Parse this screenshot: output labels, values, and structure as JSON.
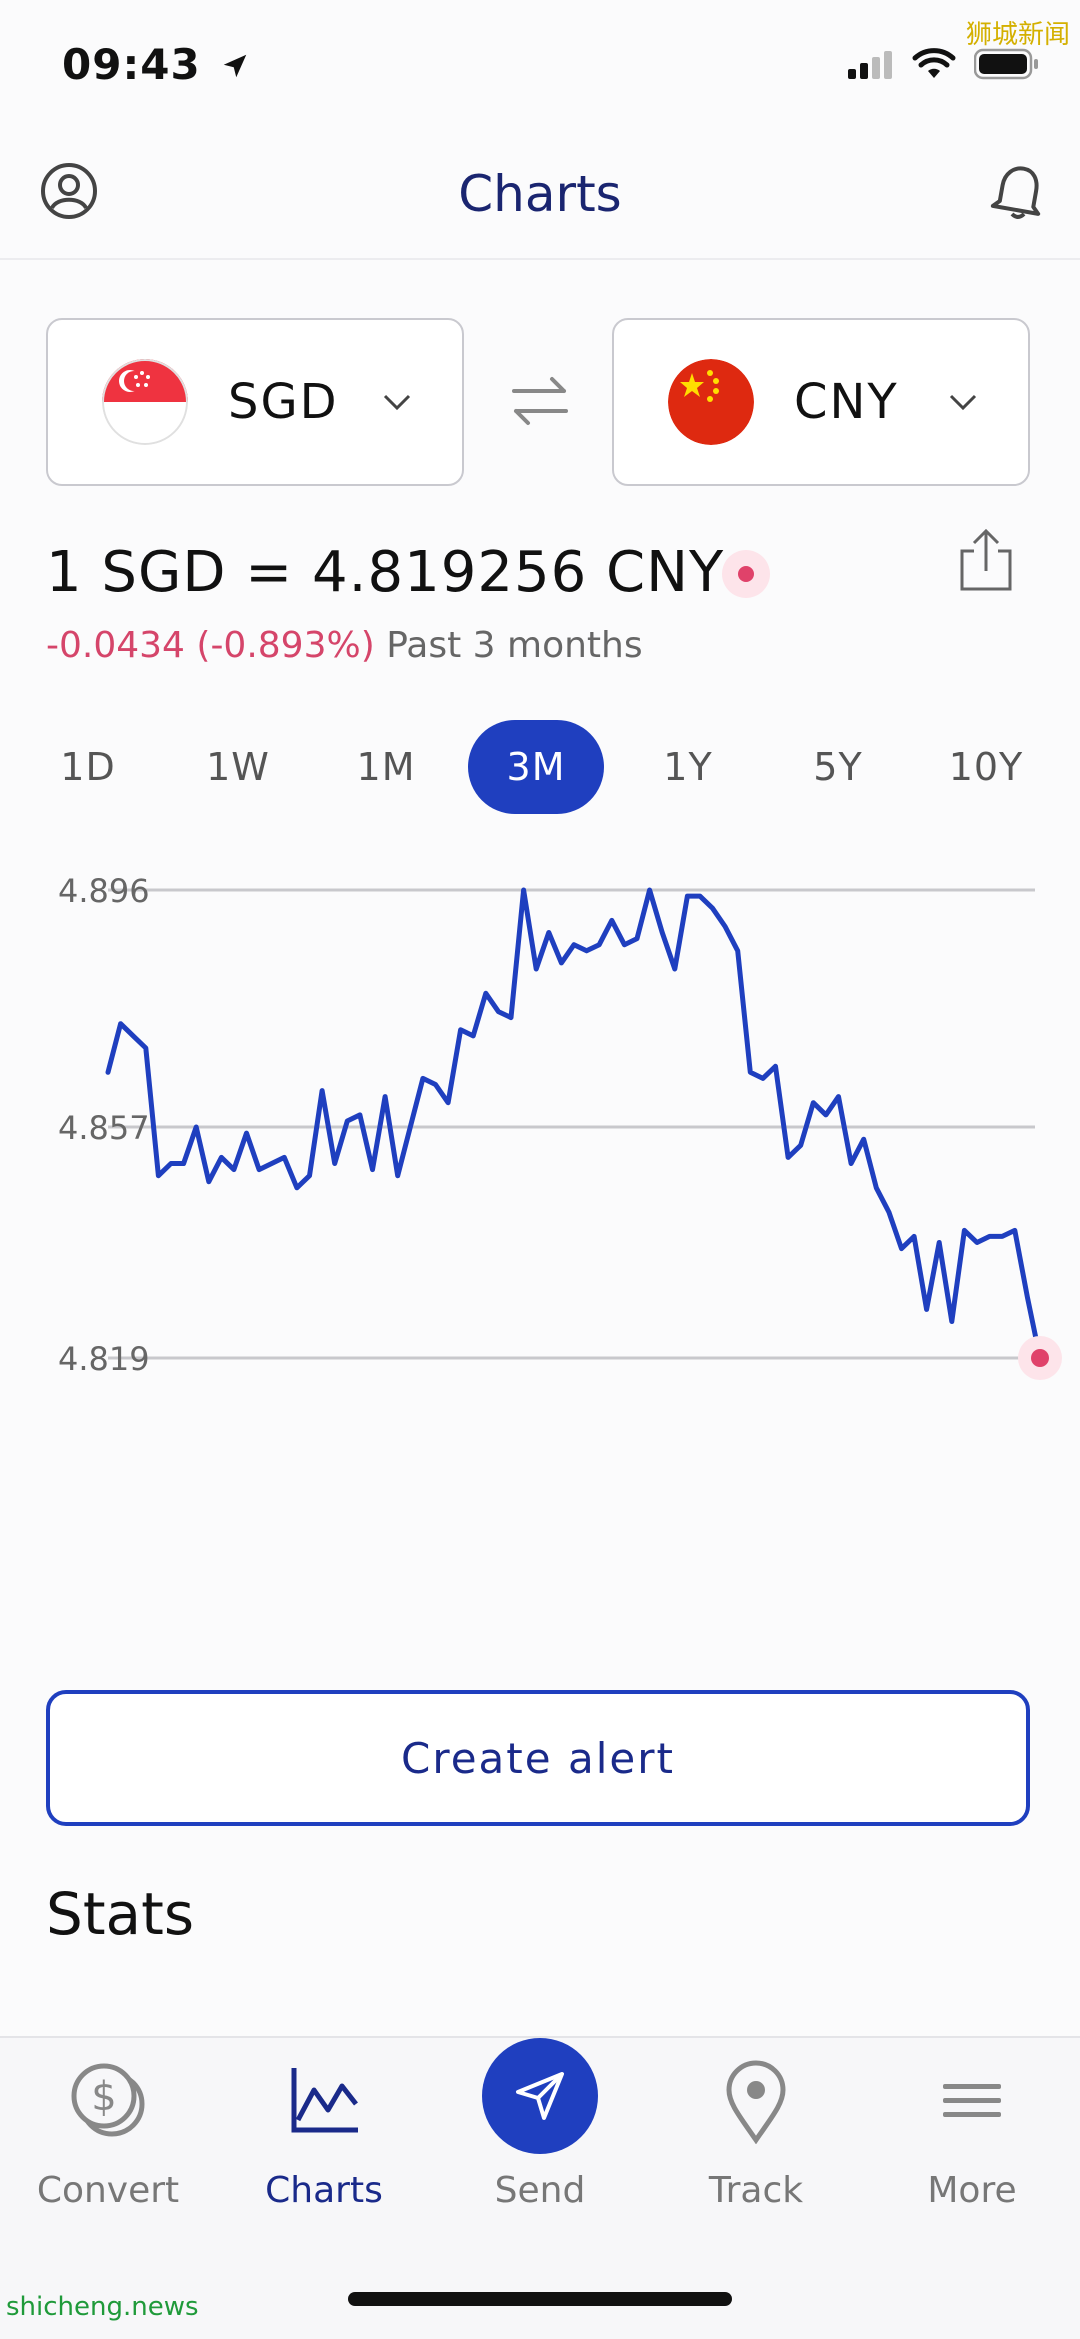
{
  "status_bar": {
    "time": "09:43",
    "icons": [
      "location-arrow-icon",
      "cellular-signal-icon",
      "wifi-icon",
      "battery-icon"
    ]
  },
  "watermarks": {
    "top": "狮城新闻",
    "bottom": "shicheng.news"
  },
  "header": {
    "title": "Charts",
    "left_icon": "profile-icon",
    "right_icon": "bell-icon"
  },
  "converter": {
    "from": {
      "code": "SGD",
      "flag": "singapore-flag-icon"
    },
    "to": {
      "code": "CNY",
      "flag": "china-flag-icon"
    },
    "swap_icon": "swap-arrows-icon"
  },
  "rate": {
    "text": "1 SGD = 4.819256 CNY",
    "change": "-0.0434 (-0.893%)",
    "period": "Past 3 months"
  },
  "ranges": [
    "1D",
    "1W",
    "1M",
    "3M",
    "1Y",
    "5Y",
    "10Y"
  ],
  "active_range": "3M",
  "chart_data": {
    "type": "line",
    "yticks": [
      "4.896",
      "4.857",
      "4.819"
    ],
    "ylim": [
      4.819,
      4.896
    ],
    "grid": true,
    "series": [
      {
        "values": [
          4.866,
          4.874,
          4.872,
          4.87,
          4.849,
          4.851,
          4.851,
          4.857,
          4.848,
          4.852,
          4.85,
          4.856,
          4.85,
          4.851,
          4.852,
          4.847,
          4.849,
          4.863,
          4.851,
          4.858,
          4.859,
          4.85,
          4.862,
          4.849,
          4.857,
          4.865,
          4.864,
          4.861,
          4.873,
          4.872,
          4.879,
          4.876,
          4.875,
          4.896,
          4.883,
          4.889,
          4.884,
          4.887,
          4.886,
          4.887,
          4.891,
          4.887,
          4.888,
          4.896,
          4.889,
          4.883,
          4.895,
          4.895,
          4.893,
          4.89,
          4.886,
          4.866,
          4.865,
          4.867,
          4.852,
          4.854,
          4.861,
          4.859,
          4.862,
          4.851,
          4.855,
          4.847,
          4.843,
          4.837,
          4.839,
          4.827,
          4.838,
          4.825,
          4.84,
          4.838,
          4.839,
          4.839,
          4.84,
          4.829,
          4.819
        ]
      }
    ],
    "line_color": "#1f3fbf",
    "end_marker_color": "#e0426a"
  },
  "alert_button": "Create alert",
  "stats_heading": "Stats",
  "nav": [
    {
      "label": "Convert",
      "icon": "dollar-coins-icon"
    },
    {
      "label": "Charts",
      "icon": "line-chart-icon"
    },
    {
      "label": "Send",
      "icon": "paper-plane-icon"
    },
    {
      "label": "Track",
      "icon": "map-pin-icon"
    },
    {
      "label": "More",
      "icon": "hamburger-menu-icon"
    }
  ],
  "colors": {
    "accent": "#1f3fbf",
    "title": "#1a2570",
    "negative": "#d5456a"
  }
}
